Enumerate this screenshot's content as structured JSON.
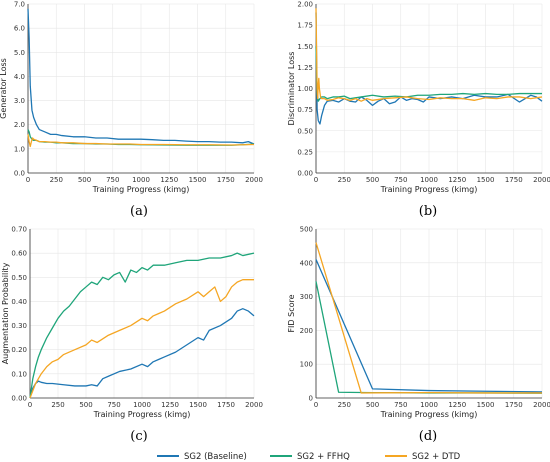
{
  "colors": {
    "baseline": "#1f77b4",
    "ffhq": "#1fa57a",
    "dtd": "#f5a623"
  },
  "legend": [
    {
      "name": "SG2 (Baseline)",
      "color": "#1f77b4"
    },
    {
      "name": "SG2 + FFHQ",
      "color": "#1fa57a"
    },
    {
      "name": "SG2 + DTD",
      "color": "#f5a623"
    }
  ],
  "chart_data": [
    {
      "panel": "(a)",
      "type": "line",
      "xlabel": "Training Progress (kimg)",
      "ylabel": "Generator Loss",
      "xlim": [
        0,
        2000
      ],
      "ylim": [
        0,
        7.0
      ],
      "xticks": [
        0,
        250,
        500,
        750,
        1000,
        1250,
        1500,
        1750,
        2000
      ],
      "yticks": [
        "0.0",
        "1.0",
        "2.0",
        "3.0",
        "4.0",
        "5.0",
        "6.0",
        "7.0"
      ],
      "grid": true,
      "series": [
        {
          "key": "baseline",
          "name": "SG2 (Baseline)",
          "x": [
            0,
            10,
            20,
            35,
            50,
            75,
            100,
            150,
            200,
            250,
            300,
            400,
            500,
            600,
            700,
            800,
            900,
            1000,
            1100,
            1200,
            1300,
            1400,
            1500,
            1600,
            1700,
            1800,
            1900,
            1950,
            2000
          ],
          "y": [
            6.8,
            5.6,
            3.6,
            2.6,
            2.3,
            2.0,
            1.8,
            1.7,
            1.6,
            1.6,
            1.55,
            1.5,
            1.5,
            1.45,
            1.45,
            1.4,
            1.4,
            1.4,
            1.38,
            1.35,
            1.35,
            1.32,
            1.3,
            1.3,
            1.28,
            1.28,
            1.25,
            1.3,
            1.2
          ]
        },
        {
          "key": "ffhq",
          "name": "SG2 + FFHQ",
          "x": [
            0,
            10,
            20,
            35,
            50,
            75,
            100,
            150,
            200,
            250,
            300,
            400,
            500,
            600,
            700,
            800,
            900,
            1000,
            1200,
            1400,
            1600,
            1800,
            1900,
            2000
          ],
          "y": [
            1.8,
            1.7,
            1.5,
            1.4,
            1.35,
            1.35,
            1.3,
            1.28,
            1.28,
            1.25,
            1.25,
            1.22,
            1.22,
            1.2,
            1.2,
            1.18,
            1.18,
            1.17,
            1.16,
            1.15,
            1.15,
            1.15,
            1.17,
            1.2
          ]
        },
        {
          "key": "dtd",
          "name": "SG2 + DTD",
          "x": [
            0,
            10,
            20,
            30,
            40,
            50,
            75,
            100,
            150,
            200,
            250,
            300,
            400,
            500,
            600,
            700,
            800,
            900,
            1000,
            1200,
            1400,
            1600,
            1800,
            1900,
            2000
          ],
          "y": [
            1.6,
            1.3,
            1.1,
            1.3,
            1.45,
            1.4,
            1.35,
            1.3,
            1.3,
            1.28,
            1.28,
            1.25,
            1.25,
            1.22,
            1.22,
            1.2,
            1.2,
            1.2,
            1.18,
            1.18,
            1.17,
            1.17,
            1.16,
            1.17,
            1.18
          ]
        }
      ]
    },
    {
      "panel": "(b)",
      "type": "line",
      "xlabel": "Training Progress (kimg)",
      "ylabel": "Discriminator Loss",
      "xlim": [
        0,
        2000
      ],
      "ylim": [
        0,
        2.0
      ],
      "xticks": [
        0,
        250,
        500,
        750,
        1000,
        1250,
        1500,
        1750,
        2000
      ],
      "yticks": [
        "0.00",
        "0.25",
        "0.50",
        "0.75",
        "1.00",
        "1.25",
        "1.50",
        "1.75",
        "2.00"
      ],
      "grid": true,
      "series": [
        {
          "key": "baseline",
          "name": "SG2 (Baseline)",
          "x": [
            0,
            10,
            20,
            35,
            50,
            75,
            100,
            150,
            200,
            250,
            300,
            350,
            400,
            450,
            500,
            550,
            600,
            650,
            700,
            750,
            800,
            850,
            900,
            950,
            1000,
            1100,
            1200,
            1300,
            1400,
            1500,
            1600,
            1700,
            1800,
            1900,
            1950,
            2000
          ],
          "y": [
            1.9,
            0.75,
            0.62,
            0.58,
            0.68,
            0.8,
            0.85,
            0.86,
            0.84,
            0.88,
            0.85,
            0.84,
            0.9,
            0.86,
            0.8,
            0.85,
            0.88,
            0.82,
            0.84,
            0.9,
            0.86,
            0.88,
            0.87,
            0.84,
            0.9,
            0.88,
            0.9,
            0.88,
            0.92,
            0.9,
            0.9,
            0.93,
            0.84,
            0.92,
            0.9,
            0.85
          ]
        },
        {
          "key": "ffhq",
          "name": "SG2 + FFHQ",
          "x": [
            0,
            10,
            20,
            35,
            50,
            75,
            100,
            150,
            200,
            250,
            300,
            400,
            500,
            600,
            700,
            800,
            900,
            1000,
            1100,
            1200,
            1300,
            1400,
            1500,
            1600,
            1700,
            1800,
            1900,
            2000
          ],
          "y": [
            1.5,
            0.95,
            0.85,
            0.88,
            0.9,
            0.9,
            0.88,
            0.9,
            0.9,
            0.91,
            0.88,
            0.9,
            0.92,
            0.9,
            0.91,
            0.9,
            0.92,
            0.92,
            0.93,
            0.93,
            0.94,
            0.93,
            0.94,
            0.93,
            0.93,
            0.94,
            0.94,
            0.94
          ]
        },
        {
          "key": "dtd",
          "name": "SG2 + DTD",
          "x": [
            0,
            10,
            15,
            20,
            25,
            30,
            40,
            50,
            75,
            100,
            150,
            200,
            250,
            300,
            350,
            400,
            450,
            500,
            600,
            700,
            800,
            900,
            1000,
            1100,
            1200,
            1300,
            1400,
            1500,
            1600,
            1700,
            1800,
            1900,
            2000
          ],
          "y": [
            1.95,
            1.0,
            0.88,
            1.05,
            1.12,
            1.0,
            0.9,
            0.88,
            0.88,
            0.86,
            0.87,
            0.89,
            0.88,
            0.86,
            0.88,
            0.85,
            0.88,
            0.86,
            0.88,
            0.89,
            0.9,
            0.88,
            0.87,
            0.89,
            0.88,
            0.88,
            0.86,
            0.89,
            0.88,
            0.9,
            0.9,
            0.88,
            0.9
          ]
        }
      ]
    },
    {
      "panel": "(c)",
      "type": "line",
      "xlabel": "Training Progress (kimg)",
      "ylabel": "Augmentation Probability",
      "xlim": [
        0,
        2000
      ],
      "ylim": [
        0,
        0.7
      ],
      "xticks": [
        0,
        250,
        500,
        750,
        1000,
        1250,
        1500,
        1750,
        2000
      ],
      "yticks": [
        "0.00",
        "0.10",
        "0.20",
        "0.30",
        "0.40",
        "0.50",
        "0.60",
        "0.70"
      ],
      "grid": true,
      "series": [
        {
          "key": "baseline",
          "name": "SG2 (Baseline)",
          "x": [
            0,
            25,
            50,
            75,
            100,
            150,
            200,
            300,
            400,
            500,
            550,
            600,
            650,
            700,
            800,
            900,
            1000,
            1050,
            1100,
            1150,
            1200,
            1300,
            1400,
            1500,
            1550,
            1600,
            1700,
            1800,
            1850,
            1900,
            1950,
            2000
          ],
          "y": [
            0.0,
            0.04,
            0.06,
            0.07,
            0.065,
            0.06,
            0.06,
            0.055,
            0.05,
            0.05,
            0.055,
            0.05,
            0.08,
            0.09,
            0.11,
            0.12,
            0.14,
            0.13,
            0.15,
            0.16,
            0.17,
            0.19,
            0.22,
            0.25,
            0.24,
            0.28,
            0.3,
            0.33,
            0.36,
            0.37,
            0.36,
            0.34
          ]
        },
        {
          "key": "ffhq",
          "name": "SG2 + FFHQ",
          "x": [
            0,
            25,
            50,
            75,
            100,
            150,
            200,
            250,
            300,
            350,
            400,
            450,
            500,
            550,
            600,
            650,
            700,
            750,
            800,
            850,
            900,
            950,
            1000,
            1050,
            1100,
            1200,
            1300,
            1400,
            1500,
            1600,
            1700,
            1800,
            1850,
            1900,
            2000
          ],
          "y": [
            0.0,
            0.08,
            0.13,
            0.17,
            0.2,
            0.25,
            0.29,
            0.33,
            0.36,
            0.38,
            0.41,
            0.44,
            0.46,
            0.48,
            0.47,
            0.5,
            0.49,
            0.51,
            0.52,
            0.48,
            0.53,
            0.52,
            0.54,
            0.53,
            0.55,
            0.55,
            0.56,
            0.57,
            0.57,
            0.58,
            0.58,
            0.59,
            0.6,
            0.59,
            0.6
          ]
        },
        {
          "key": "dtd",
          "name": "SG2 + DTD",
          "x": [
            0,
            25,
            50,
            75,
            100,
            150,
            200,
            250,
            300,
            400,
            500,
            550,
            600,
            700,
            800,
            900,
            1000,
            1050,
            1100,
            1150,
            1200,
            1300,
            1400,
            1500,
            1550,
            1600,
            1650,
            1700,
            1750,
            1800,
            1850,
            1900,
            1950,
            2000
          ],
          "y": [
            0.0,
            0.03,
            0.06,
            0.08,
            0.1,
            0.13,
            0.15,
            0.16,
            0.18,
            0.2,
            0.22,
            0.24,
            0.23,
            0.26,
            0.28,
            0.3,
            0.33,
            0.32,
            0.34,
            0.35,
            0.36,
            0.39,
            0.41,
            0.44,
            0.42,
            0.44,
            0.46,
            0.4,
            0.42,
            0.46,
            0.48,
            0.49,
            0.49,
            0.49
          ]
        }
      ]
    },
    {
      "panel": "(d)",
      "type": "line",
      "xlabel": "Training Progress (kimg)",
      "ylabel": "FID Score",
      "xlim": [
        0,
        2000
      ],
      "ylim": [
        0,
        500
      ],
      "xticks": [
        0,
        250,
        500,
        750,
        1000,
        1250,
        1500,
        1750,
        2000
      ],
      "yticks": [
        "0",
        "100",
        "200",
        "300",
        "400",
        "500"
      ],
      "grid": true,
      "series": [
        {
          "key": "baseline",
          "name": "SG2 (Baseline)",
          "x": [
            0,
            500,
            1000,
            1500,
            2000
          ],
          "y": [
            410,
            27,
            22,
            20,
            18
          ]
        },
        {
          "key": "ffhq",
          "name": "SG2 + FFHQ",
          "x": [
            0,
            200,
            500,
            1000,
            1500,
            2000
          ],
          "y": [
            345,
            17,
            16,
            15,
            15,
            14
          ]
        },
        {
          "key": "dtd",
          "name": "SG2 + DTD",
          "x": [
            0,
            400,
            1000,
            1500,
            2000
          ],
          "y": [
            460,
            15,
            16,
            15,
            15
          ]
        }
      ]
    }
  ]
}
